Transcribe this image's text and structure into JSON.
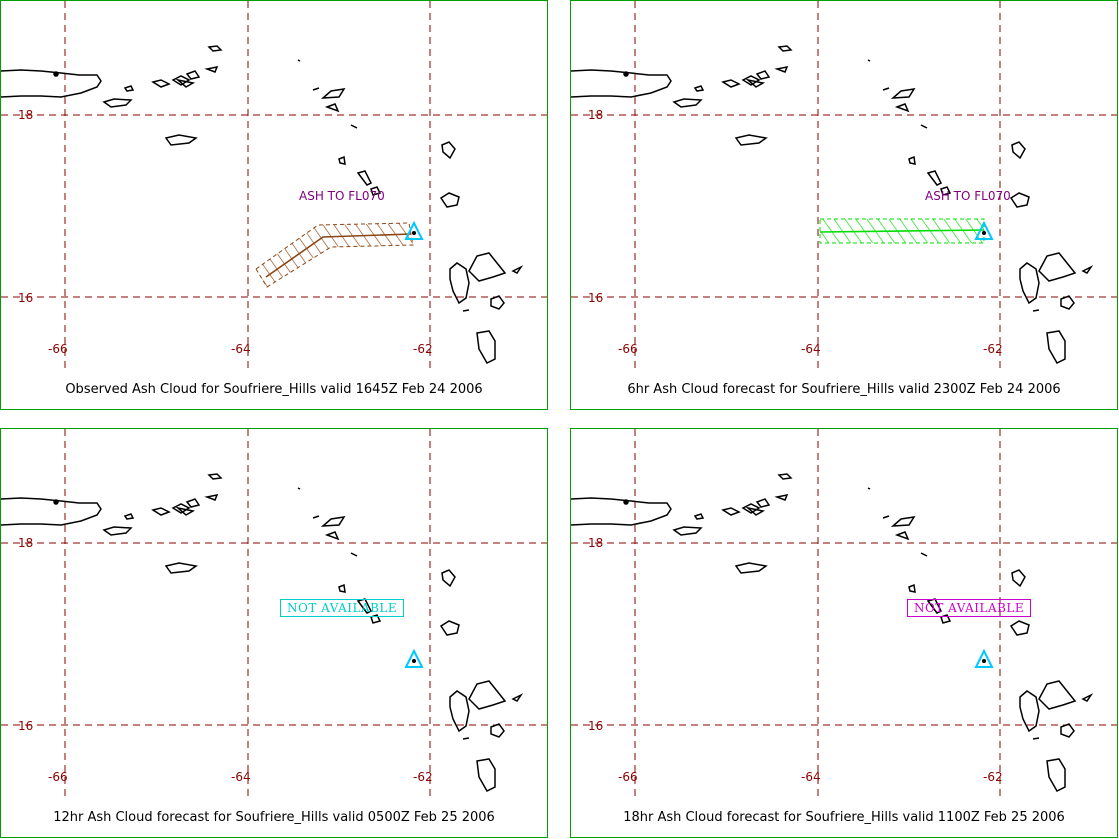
{
  "colors": {
    "panel_border": "#00a000",
    "grid": "#8b0000",
    "coast": "#000000",
    "volcano": "#00c8ff",
    "ash_observed": "#8b4513",
    "ash_forecast": "#00dd00",
    "ash_label": "#800080",
    "na_cyan": "#00cccc",
    "na_magenta": "#cc00cc"
  },
  "panels": [
    {
      "caption": "Observed Ash Cloud for Soufriere_Hills valid 1645Z Feb 24 2006",
      "lat_labels": [
        "18",
        "16"
      ],
      "lon_labels": [
        "-66",
        "-64",
        "-62"
      ],
      "ash_label": "ASH TO FL070",
      "not_available": ""
    },
    {
      "caption": "6hr Ash Cloud forecast for Soufriere_Hills valid 2300Z Feb 24 2006",
      "lat_labels": [
        "18",
        "16"
      ],
      "lon_labels": [
        "-66",
        "-64",
        "-62"
      ],
      "ash_label": "ASH TO FL070",
      "not_available": ""
    },
    {
      "caption": "12hr Ash Cloud forecast for Soufriere_Hills valid 0500Z Feb 25 2006",
      "lat_labels": [
        "18",
        "16"
      ],
      "lon_labels": [
        "-66",
        "-64",
        "-62"
      ],
      "ash_label": "",
      "not_available": "NOT AVAILABLE"
    },
    {
      "caption": "18hr Ash Cloud forecast for Soufriere_Hills valid 1100Z Feb 25 2006",
      "lat_labels": [
        "18",
        "16"
      ],
      "lon_labels": [
        "-66",
        "-64",
        "-62"
      ],
      "ash_label": "",
      "not_available": "NOT AVAILABLE"
    }
  ]
}
